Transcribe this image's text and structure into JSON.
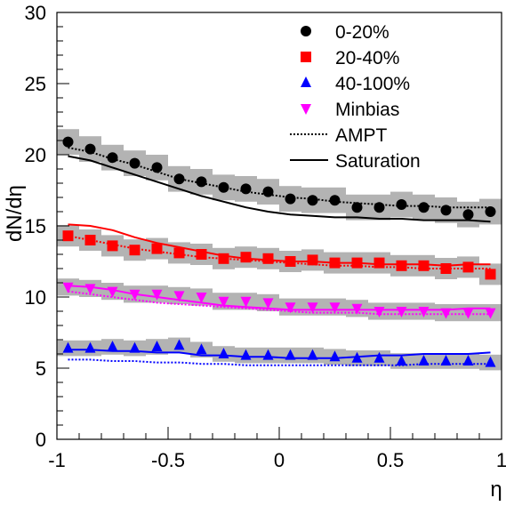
{
  "chart_data": {
    "type": "scatter",
    "xlabel": "η",
    "ylabel": "dN/dη",
    "xlim": [
      -1,
      1
    ],
    "ylim": [
      0,
      30
    ],
    "x_ticks": [
      -1,
      -0.5,
      0,
      0.5,
      1
    ],
    "x_tick_labels": [
      "-1",
      "-0.5",
      "0",
      "0.5",
      "1"
    ],
    "y_ticks": [
      0,
      5,
      10,
      15,
      20,
      25,
      30
    ],
    "y_tick_labels": [
      "0",
      "5",
      "10",
      "15",
      "20",
      "25",
      "30"
    ],
    "grid": false,
    "legend_position": "top-right",
    "legend": [
      {
        "label": "0-20%",
        "marker": "circle",
        "color": "#000000"
      },
      {
        "label": "20-40%",
        "marker": "square",
        "color": "#ff0000"
      },
      {
        "label": "40-100%",
        "marker": "triangle-up",
        "color": "#0000ff"
      },
      {
        "label": "Minbias",
        "marker": "triangle-down",
        "color": "#ff00ff"
      },
      {
        "label": "AMPT",
        "line": "dotted",
        "color": "#000000"
      },
      {
        "label": "Saturation",
        "line": "solid",
        "color": "#000000"
      }
    ],
    "x": [
      -0.95,
      -0.85,
      -0.75,
      -0.65,
      -0.55,
      -0.45,
      -0.35,
      -0.25,
      -0.15,
      -0.05,
      0.05,
      0.15,
      0.25,
      0.35,
      0.45,
      0.55,
      0.65,
      0.75,
      0.85,
      0.95
    ],
    "systematic_band_halfwidth": 0.05,
    "series": [
      {
        "name": "0-20%",
        "marker": "circle",
        "color": "#000000",
        "values": [
          20.9,
          20.4,
          19.8,
          19.4,
          19.1,
          18.3,
          18.1,
          17.7,
          17.6,
          17.4,
          16.9,
          16.8,
          16.8,
          16.3,
          16.3,
          16.5,
          16.3,
          16.1,
          15.8,
          16.0
        ],
        "band_halfheight": 0.9,
        "ampt": [
          20.5,
          20.2,
          19.7,
          19.3,
          18.8,
          18.3,
          18.0,
          17.7,
          17.4,
          17.2,
          17.0,
          16.9,
          16.7,
          16.6,
          16.5,
          16.4,
          16.4,
          16.3,
          16.3,
          16.3
        ],
        "saturation": [
          19.9,
          19.6,
          19.1,
          18.6,
          18.1,
          17.6,
          17.1,
          16.7,
          16.3,
          16.0,
          15.8,
          15.7,
          15.6,
          15.6,
          15.5,
          15.5,
          15.4,
          15.4,
          15.4,
          15.3
        ]
      },
      {
        "name": "20-40%",
        "marker": "square",
        "color": "#ff0000",
        "values": [
          14.3,
          14.0,
          13.6,
          13.3,
          13.4,
          13.1,
          13.0,
          12.7,
          12.8,
          12.7,
          12.5,
          12.6,
          12.4,
          12.4,
          12.4,
          12.2,
          12.2,
          12.0,
          12.1,
          11.6
        ],
        "band_halfheight": 0.75,
        "ampt": [
          14.3,
          14.0,
          13.7,
          13.4,
          13.2,
          13.0,
          12.8,
          12.7,
          12.6,
          12.5,
          12.4,
          12.3,
          12.2,
          12.2,
          12.1,
          12.1,
          12.0,
          12.0,
          12.0,
          12.0
        ],
        "saturation": [
          15.1,
          15.0,
          14.7,
          14.2,
          13.8,
          13.5,
          13.2,
          12.9,
          12.7,
          12.6,
          12.5,
          12.5,
          12.4,
          12.4,
          12.3,
          12.3,
          12.3,
          12.2,
          12.3,
          12.3
        ]
      },
      {
        "name": "Minbias",
        "marker": "triangle-down",
        "color": "#ff00ff",
        "values": [
          10.7,
          10.6,
          10.4,
          10.2,
          10.2,
          10.1,
          10.0,
          9.7,
          9.7,
          9.6,
          9.3,
          9.3,
          9.3,
          9.2,
          9.0,
          9.0,
          9.0,
          8.9,
          8.9,
          8.9
        ],
        "band_halfheight": 0.6,
        "ampt": [
          10.4,
          10.2,
          10.0,
          9.8,
          9.6,
          9.5,
          9.4,
          9.3,
          9.2,
          9.1,
          9.0,
          8.9,
          8.9,
          8.9,
          8.8,
          8.8,
          8.8,
          8.8,
          8.8,
          8.8
        ],
        "saturation": [
          10.8,
          10.7,
          10.5,
          10.2,
          10.0,
          9.8,
          9.6,
          9.4,
          9.3,
          9.2,
          9.1,
          9.1,
          9.1,
          9.1,
          9.1,
          9.1,
          9.1,
          9.1,
          9.2,
          9.2
        ]
      },
      {
        "name": "40-100%",
        "marker": "triangle-up",
        "color": "#0000ff",
        "values": [
          6.4,
          6.4,
          6.5,
          6.4,
          6.5,
          6.6,
          6.3,
          6.0,
          5.9,
          5.9,
          5.9,
          5.9,
          5.8,
          5.7,
          5.7,
          5.5,
          5.5,
          5.5,
          5.5,
          5.4
        ],
        "band_halfheight": 0.55,
        "ampt": [
          5.6,
          5.6,
          5.5,
          5.5,
          5.4,
          5.4,
          5.3,
          5.3,
          5.2,
          5.2,
          5.2,
          5.2,
          5.2,
          5.2,
          5.2,
          5.2,
          5.3,
          5.3,
          5.3,
          5.3
        ],
        "saturation": [
          6.3,
          6.3,
          6.2,
          6.2,
          6.1,
          6.1,
          5.9,
          5.9,
          5.8,
          5.8,
          5.7,
          5.7,
          5.7,
          5.8,
          5.9,
          5.9,
          6.0,
          6.0,
          6.0,
          6.1
        ]
      }
    ]
  }
}
